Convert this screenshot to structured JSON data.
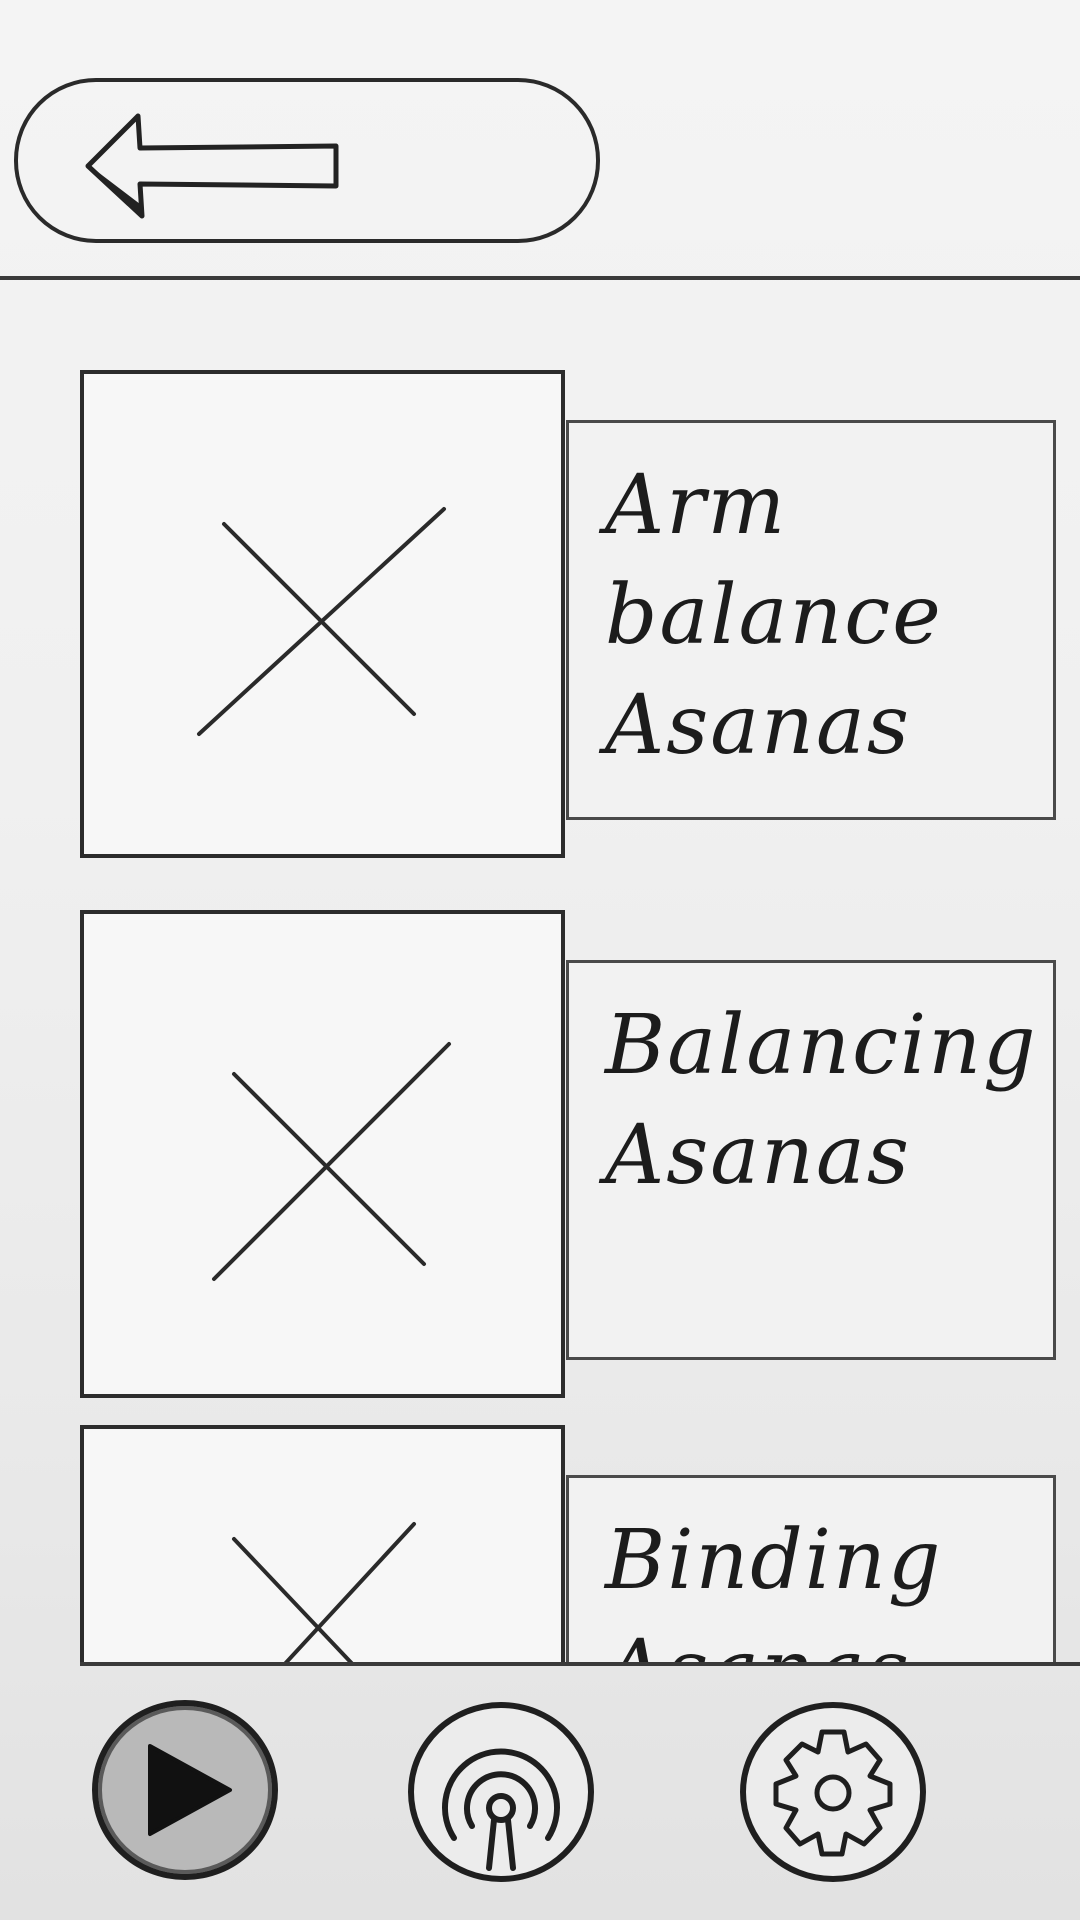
{
  "header": {
    "back_icon": "back-arrow-icon"
  },
  "categories": [
    {
      "label": "Arm balance Asanas",
      "thumbnail_icon": "image-placeholder-icon"
    },
    {
      "label": "Balancing Asanas",
      "thumbnail_icon": "image-placeholder-icon"
    },
    {
      "label": "Binding Asanas",
      "thumbnail_icon": "image-placeholder-icon"
    }
  ],
  "bottom_nav": {
    "items": [
      {
        "icon": "play-icon",
        "active": true
      },
      {
        "icon": "podcast-icon",
        "active": false
      },
      {
        "icon": "gear-icon",
        "active": false
      }
    ]
  }
}
